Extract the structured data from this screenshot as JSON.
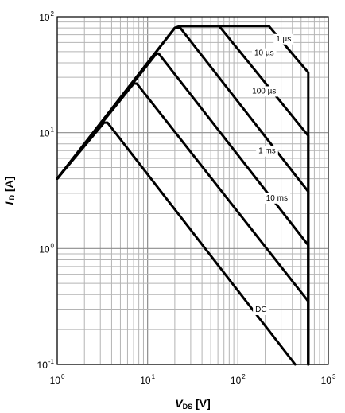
{
  "chart_data": {
    "type": "line",
    "title": "",
    "x_scale": "log",
    "y_scale": "log",
    "xlim": [
      1,
      1000
    ],
    "ylim": [
      0.1,
      100
    ],
    "grid": true,
    "xlabel": {
      "symbol": "V",
      "subscript": "DS",
      "unit": "[V]"
    },
    "ylabel": {
      "symbol": "I",
      "subscript": "D",
      "unit": "[A]"
    },
    "x_ticks": [
      {
        "value": 1,
        "base": "10",
        "exp": "0"
      },
      {
        "value": 10,
        "base": "10",
        "exp": "1"
      },
      {
        "value": 100,
        "base": "10",
        "exp": "2"
      },
      {
        "value": 1000,
        "base": "10",
        "exp": "3"
      }
    ],
    "y_ticks": [
      {
        "value": 0.1,
        "base": "10",
        "exp": "-1"
      },
      {
        "value": 1,
        "base": "10",
        "exp": "0"
      },
      {
        "value": 10,
        "base": "10",
        "exp": "1"
      },
      {
        "value": 100,
        "base": "10",
        "exp": "2"
      }
    ],
    "series": [
      {
        "name": "DC",
        "x": [
          1,
          3.3,
          3.6,
          430
        ],
        "y": [
          4,
          12.2,
          12.2,
          0.1
        ],
        "label": {
          "text": "DC",
          "x": 180,
          "y": 0.3
        }
      },
      {
        "name": "10 ms",
        "x": [
          1,
          7,
          7.6,
          600,
          600
        ],
        "y": [
          4,
          26.5,
          26.5,
          0.35,
          0.1
        ],
        "label": {
          "text": "10 ms",
          "x": 270,
          "y": 2.75
        }
      },
      {
        "name": "1 ms",
        "x": [
          1,
          12.5,
          13.3,
          600,
          600
        ],
        "y": [
          4,
          48,
          48,
          1.07,
          0.1
        ],
        "label": {
          "text": "1 ms",
          "x": 210,
          "y": 7
        }
      },
      {
        "name": "100 µs",
        "x": [
          1,
          20,
          23,
          600,
          600
        ],
        "y": [
          4,
          80,
          80,
          3.1,
          0.1
        ],
        "label": {
          "text": "100 µs",
          "x": 195,
          "y": 23
        }
      },
      {
        "name": "10 µs",
        "x": [
          1,
          20,
          23,
          62,
          600,
          600
        ],
        "y": [
          4,
          80,
          83,
          83,
          9.4,
          0.1
        ],
        "label": {
          "text": "10 µs",
          "x": 195,
          "y": 49
        }
      },
      {
        "name": "1 µs",
        "x": [
          1,
          20,
          23,
          220,
          265,
          600,
          600
        ],
        "y": [
          4,
          80,
          83,
          83,
          70,
          33,
          0.1
        ],
        "label": {
          "text": "1 µs",
          "x": 320,
          "y": 65
        }
      }
    ]
  }
}
